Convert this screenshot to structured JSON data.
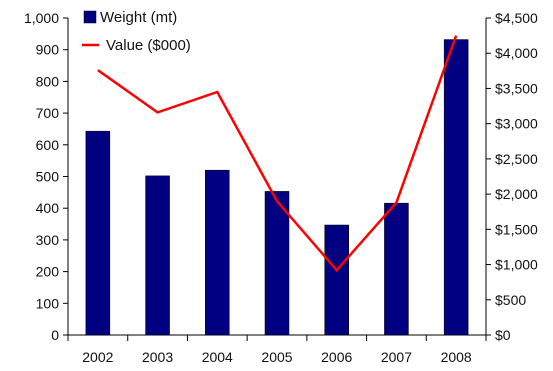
{
  "chart_data": {
    "type": "bar",
    "categories": [
      "2002",
      "2003",
      "2004",
      "2005",
      "2006",
      "2007",
      "2008"
    ],
    "series": [
      {
        "name": "Weight (mt)",
        "kind": "bar",
        "axis": "left",
        "color": "#000080",
        "values": [
          643,
          502,
          520,
          453,
          347,
          416,
          932
        ]
      },
      {
        "name": "Value ($000)",
        "kind": "line",
        "axis": "right",
        "color": "#ff0000",
        "values": [
          3760,
          3160,
          3450,
          1900,
          920,
          1880,
          4250
        ]
      }
    ],
    "y_left": {
      "ylim": [
        0,
        1000
      ],
      "ticks": [
        0,
        100,
        200,
        300,
        400,
        500,
        600,
        700,
        800,
        900,
        1000
      ],
      "tick_labels": [
        "0",
        "100",
        "200",
        "300",
        "400",
        "500",
        "600",
        "700",
        "800",
        "900",
        "1,000"
      ]
    },
    "y_right": {
      "ylim": [
        0,
        4500
      ],
      "ticks": [
        0,
        500,
        1000,
        1500,
        2000,
        2500,
        3000,
        3500,
        4000,
        4500
      ],
      "tick_labels": [
        "$0",
        "$500",
        "$1,000",
        "$1,500",
        "$2,000",
        "$2,500",
        "$3,000",
        "$3,500",
        "$4,000",
        "$4,500"
      ]
    },
    "title": "",
    "xlabel": "",
    "ylabel": "",
    "grid": false,
    "legend": "top-left"
  }
}
